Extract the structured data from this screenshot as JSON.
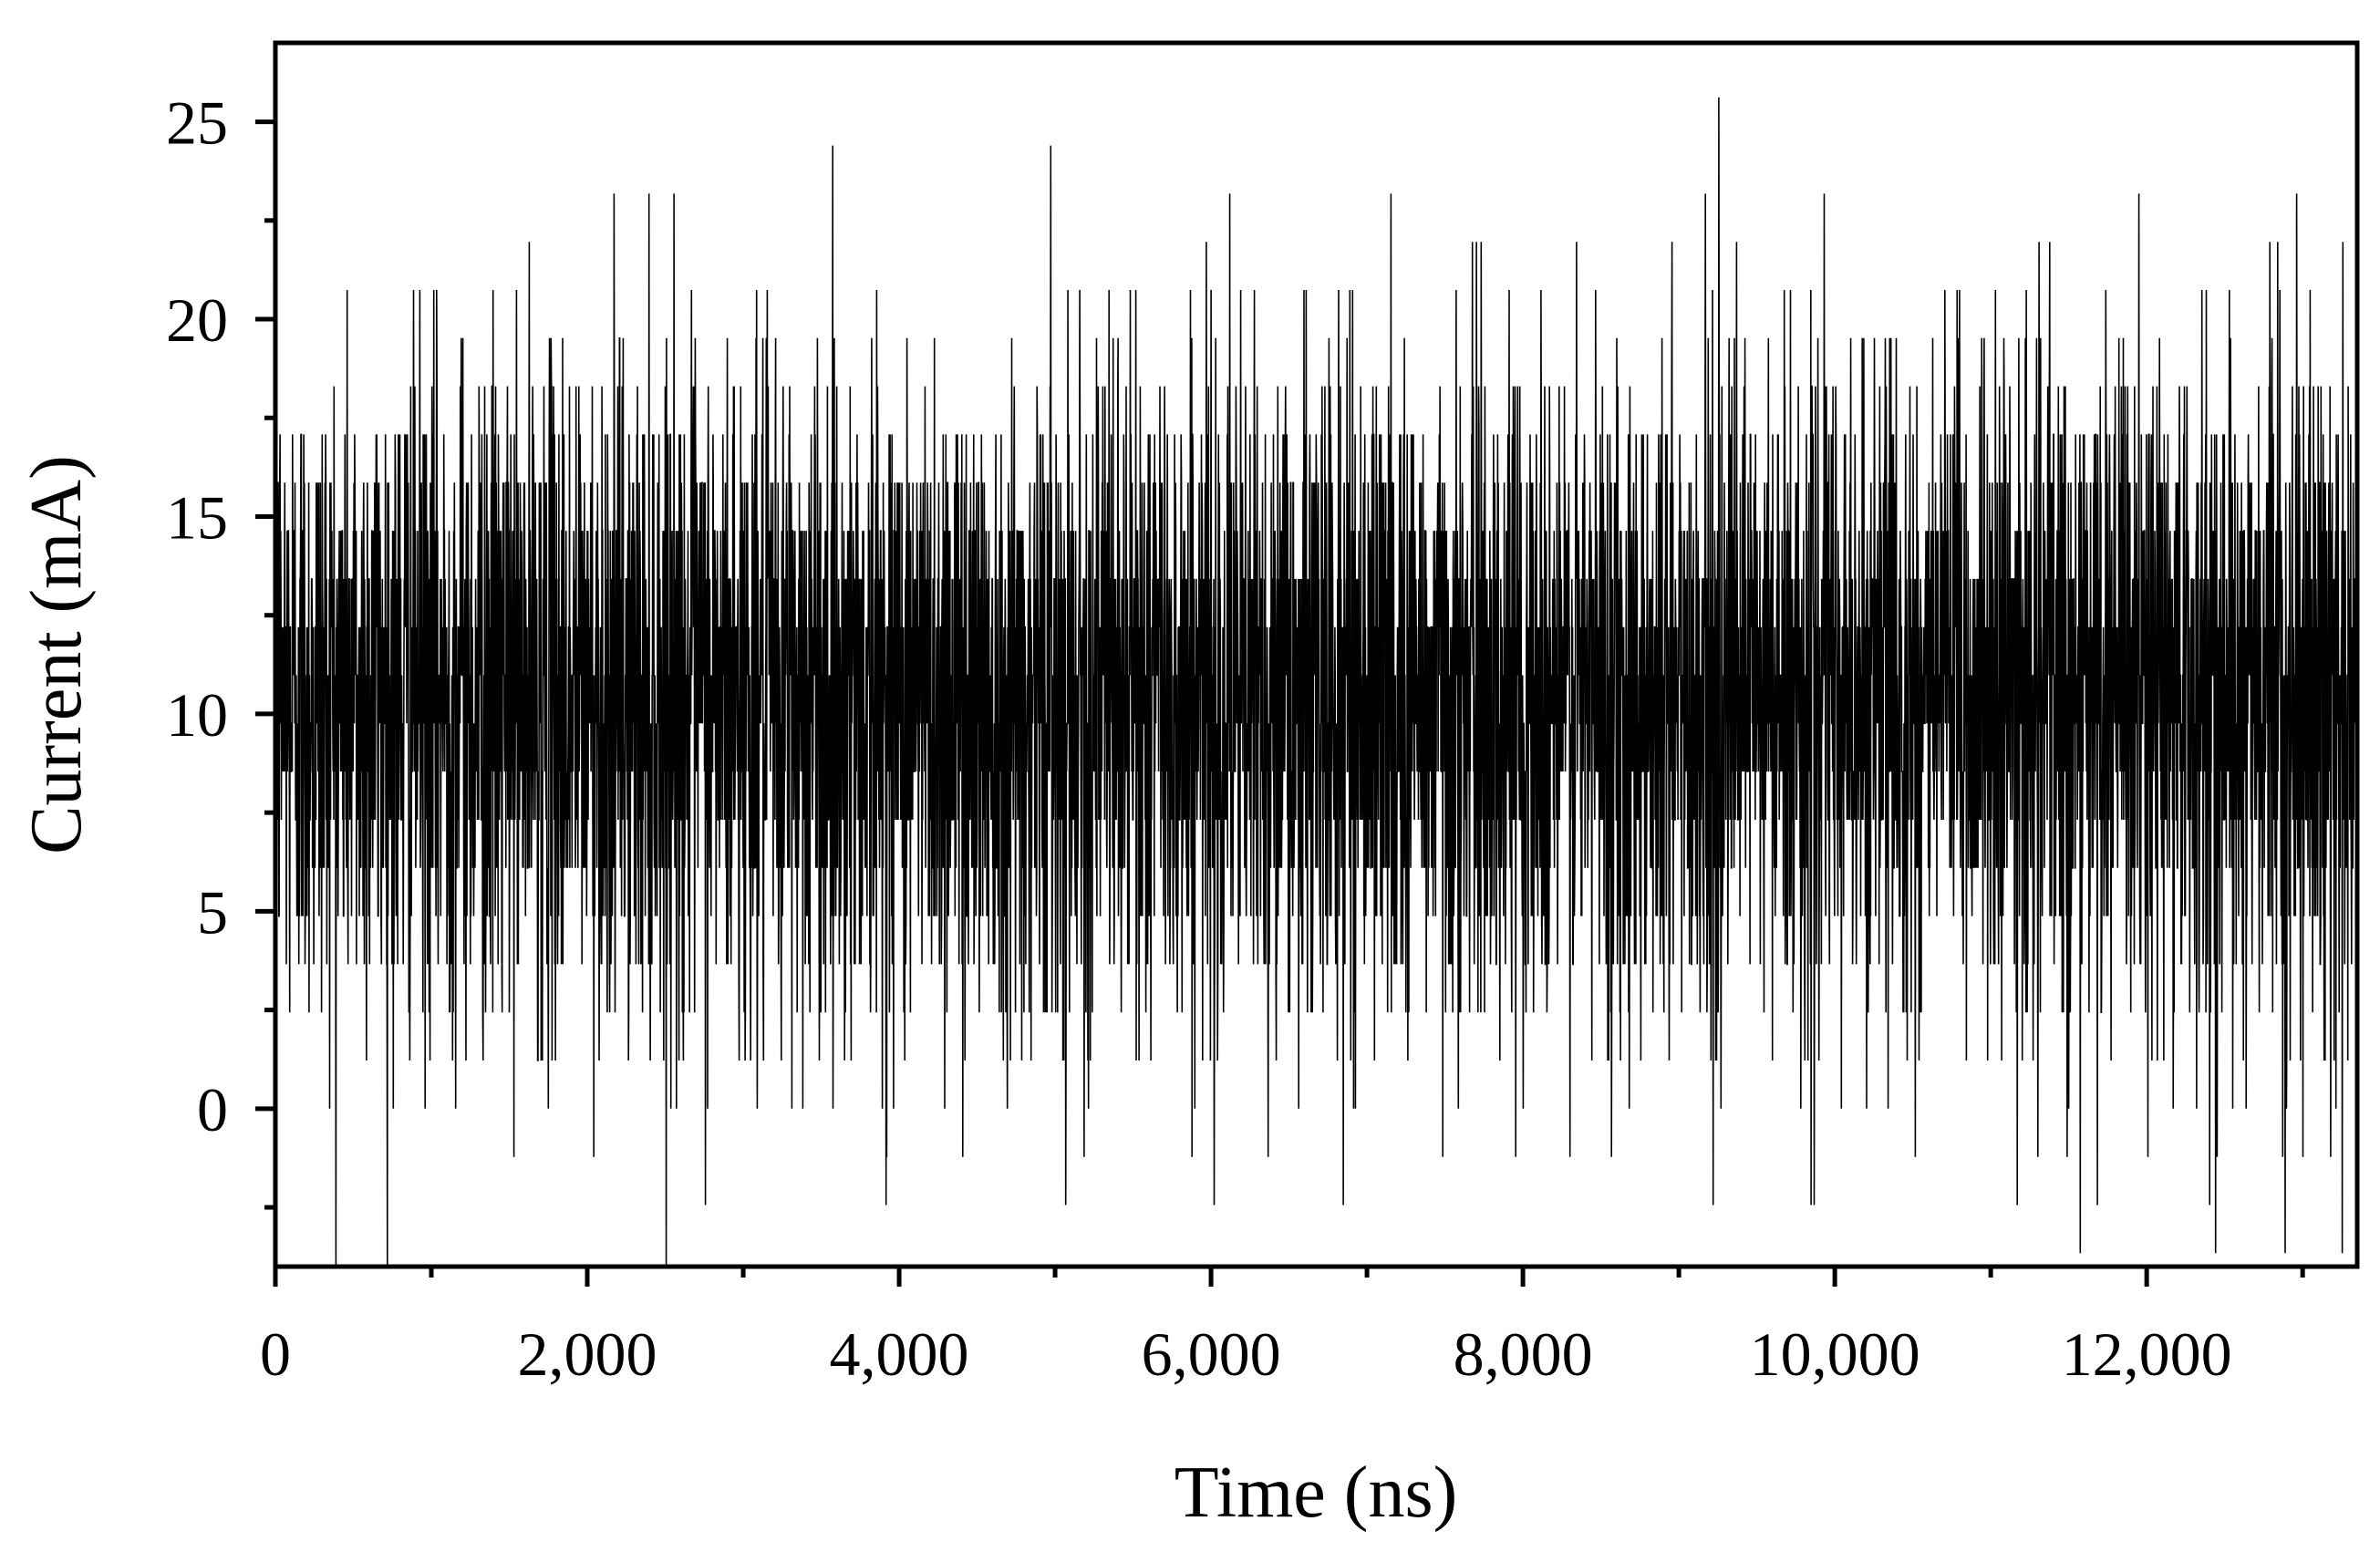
{
  "chart_data": {
    "type": "line",
    "title": "",
    "xlabel": "Time (ns)",
    "ylabel": "Current (mA)",
    "xlim": [
      0,
      13350
    ],
    "ylim": [
      -4,
      27
    ],
    "x_ticks": [
      0,
      2000,
      4000,
      6000,
      8000,
      10000,
      12000
    ],
    "x_tick_labels": [
      "0",
      "2,000",
      "4,000",
      "6,000",
      "8,000",
      "10,000",
      "12,000"
    ],
    "x_minor_step": 1000,
    "y_ticks": [
      0,
      5,
      10,
      15,
      20,
      25
    ],
    "y_tick_labels": [
      "0",
      "5",
      "10",
      "15",
      "20",
      "25"
    ],
    "y_minor_step": 2.5,
    "grid": false,
    "legend": "none",
    "line_color": "#000000",
    "series": [
      {
        "x_start": 0,
        "x_step": 2,
        "count": 6675,
        "mean": 10.5,
        "std": 4.2,
        "level_step": 1.22,
        "y_min": -4,
        "y_max": 25.7
      }
    ]
  }
}
